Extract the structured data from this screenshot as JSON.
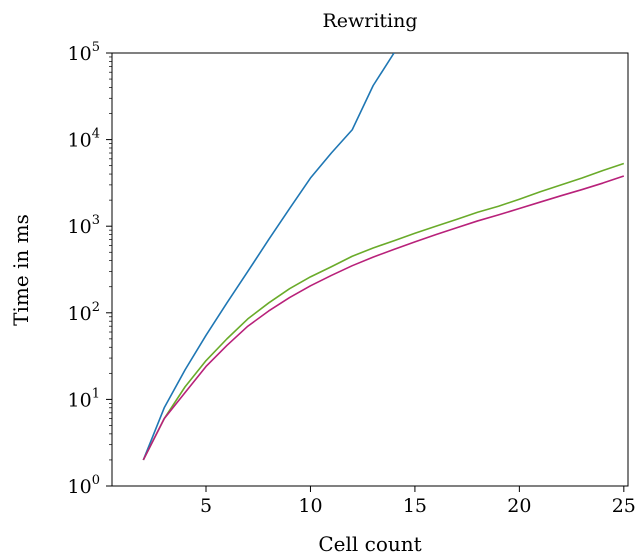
{
  "chart_data": {
    "type": "line",
    "title": "Rewriting",
    "xlabel": "Cell count",
    "ylabel": "Time in ms",
    "yscale": "log",
    "xlim": [
      0.5,
      25.2
    ],
    "ylim": [
      1,
      100000
    ],
    "xticks": [
      5,
      10,
      15,
      20,
      25
    ],
    "xtick_labels": [
      "5",
      "10",
      "15",
      "20",
      "25"
    ],
    "yticks": [
      {
        "base": "10",
        "exp": "0",
        "value": 1
      },
      {
        "base": "10",
        "exp": "1",
        "value": 10
      },
      {
        "base": "10",
        "exp": "2",
        "value": 100
      },
      {
        "base": "10",
        "exp": "3",
        "value": 1000
      },
      {
        "base": "10",
        "exp": "4",
        "value": 10000
      },
      {
        "base": "10",
        "exp": "5",
        "value": 100000
      }
    ],
    "grid": false,
    "series": [
      {
        "color": "#1f77b4",
        "x": [
          2,
          3,
          4,
          5,
          6,
          7,
          8,
          9,
          10,
          11,
          12,
          13,
          14
        ],
        "y": [
          2,
          8,
          22,
          55,
          130,
          300,
          700,
          1600,
          3600,
          7000,
          13000,
          42000,
          100000
        ]
      },
      {
        "color": "#6aab2a",
        "x": [
          2,
          3,
          4,
          5,
          6,
          7,
          8,
          9,
          10,
          11,
          12,
          13,
          14,
          15,
          16,
          17,
          18,
          19,
          20,
          21,
          22,
          23,
          24,
          25
        ],
        "y": [
          2,
          6,
          14,
          28,
          50,
          85,
          130,
          190,
          260,
          340,
          450,
          560,
          680,
          830,
          1000,
          1200,
          1450,
          1700,
          2050,
          2500,
          3000,
          3600,
          4400,
          5300
        ]
      },
      {
        "color": "#b8217a",
        "x": [
          2,
          3,
          4,
          5,
          6,
          7,
          8,
          9,
          10,
          11,
          12,
          13,
          14,
          15,
          16,
          17,
          18,
          19,
          20,
          21,
          22,
          23,
          24,
          25
        ],
        "y": [
          2,
          6,
          12,
          24,
          42,
          70,
          105,
          150,
          205,
          270,
          350,
          440,
          540,
          660,
          800,
          960,
          1150,
          1350,
          1600,
          1900,
          2250,
          2650,
          3150,
          3800
        ]
      }
    ]
  }
}
